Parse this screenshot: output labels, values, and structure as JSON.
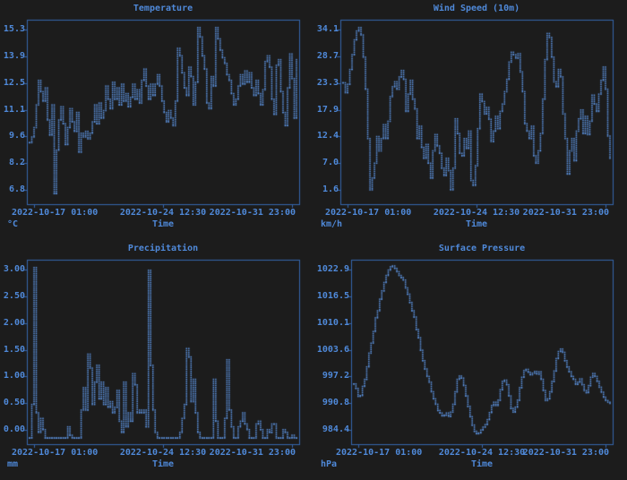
{
  "colors": {
    "background": "#1c1c1c",
    "frame": "#3566ad",
    "text": "#4f89d9",
    "dots": "#5f97e6"
  },
  "chart_data": [
    {
      "type": "line",
      "title": "Temperature",
      "xlabel": "Time",
      "ylabel": "°C",
      "xticks": [
        "2022-10-17 01:00",
        "2022-10-24 12:30",
        "2022-10-31 23:00"
      ],
      "yticks": [
        "15.3",
        "13.9",
        "12.5",
        "11.1",
        "9.6",
        "8.2",
        "6.8"
      ],
      "ylim": [
        6.04,
        15.82
      ],
      "grid": false,
      "legend": "none",
      "values": [
        9.3,
        9.6,
        10.1,
        11.3,
        12.6,
        12.0,
        11.5,
        12.2,
        10.5,
        9.7,
        11.3,
        6.6,
        8.9,
        10.5,
        11.2,
        10.3,
        9.2,
        10.1,
        11.1,
        10.4,
        9.9,
        10.9,
        8.8,
        9.8,
        9.6,
        9.9,
        9.5,
        9.8,
        10.4,
        11.3,
        10.3,
        11.4,
        10.6,
        11.0,
        12.3,
        11.6,
        11.1,
        12.5,
        11.6,
        12.2,
        11.3,
        12.4,
        11.5,
        11.9,
        11.2,
        11.7,
        12.4,
        11.6,
        12.1,
        11.4,
        12.6,
        13.2,
        12.3,
        11.6,
        12.4,
        11.8,
        12.4,
        12.9,
        12.3,
        11.5,
        10.9,
        10.4,
        11.0,
        10.6,
        10.2,
        11.5,
        14.3,
        13.9,
        13.0,
        12.2,
        11.8,
        13.3,
        12.8,
        11.3,
        12.5,
        15.4,
        14.9,
        13.9,
        13.2,
        11.4,
        11.1,
        12.8,
        12.3,
        15.4,
        14.8,
        14.2,
        13.8,
        13.5,
        12.9,
        12.6,
        11.9,
        11.3,
        11.6,
        12.3,
        12.9,
        12.4,
        13.1,
        12.5,
        13.0,
        12.2,
        11.8,
        12.6,
        11.9,
        11.3,
        12.1,
        13.6,
        13.9,
        13.3,
        11.6,
        10.8,
        13.4,
        13.7,
        12.0,
        10.9,
        10.2,
        12.2,
        14.0,
        12.7,
        10.6,
        13.7
      ]
    },
    {
      "type": "line",
      "title": "Wind Speed (10m)",
      "xlabel": "Time",
      "ylabel": "km/h",
      "xticks": [
        "2022-10-17 01:00",
        "2022-10-24 12:30",
        "2022-10-31 23:00"
      ],
      "yticks": [
        "34.1",
        "28.7",
        "23.3",
        "17.9",
        "12.4",
        "7.0",
        "1.6"
      ],
      "ylim": [
        -1.3,
        36.1
      ],
      "grid": false,
      "legend": "none",
      "values": [
        23.3,
        21.3,
        23.0,
        26.0,
        29.0,
        32.0,
        33.8,
        34.5,
        33.0,
        28.5,
        22.0,
        12.0,
        1.6,
        4.0,
        7.0,
        12.4,
        9.5,
        12.0,
        14.8,
        12.0,
        15.5,
        20.5,
        22.5,
        23.5,
        22.0,
        24.5,
        25.8,
        24.0,
        17.5,
        21.0,
        23.8,
        20.0,
        18.0,
        12.0,
        14.5,
        10.2,
        8.0,
        10.8,
        7.0,
        4.0,
        9.5,
        12.8,
        10.5,
        9.0,
        6.0,
        4.5,
        8.0,
        5.5,
        1.6,
        6.0,
        16.0,
        13.0,
        9.0,
        8.5,
        12.0,
        10.0,
        13.5,
        3.5,
        2.5,
        6.5,
        14.0,
        21.0,
        19.5,
        17.0,
        18.3,
        15.9,
        11.4,
        13.5,
        16.5,
        14.0,
        17.5,
        19.0,
        21.5,
        24.0,
        27.5,
        29.5,
        29.0,
        28.3,
        29.2,
        25.5,
        21.5,
        15.0,
        13.5,
        12.0,
        14.5,
        8.5,
        7.0,
        9.5,
        13.0,
        20.0,
        28.0,
        33.3,
        32.5,
        28.5,
        23.5,
        22.5,
        26.0,
        24.5,
        17.0,
        12.0,
        4.8,
        9.5,
        12.0,
        7.5,
        13.5,
        16.0,
        17.8,
        13.0,
        16.5,
        12.8,
        15.5,
        20.8,
        19.0,
        17.5,
        21.0,
        23.8,
        26.5,
        22.0,
        12.5,
        8.0
      ]
    },
    {
      "type": "line",
      "title": "Precipitation",
      "xlabel": "Time",
      "ylabel": "mm",
      "xticks": [
        "2022-10-17 01:00",
        "2022-10-24 12:30",
        "2022-10-31 23:00"
      ],
      "yticks": [
        "3.00",
        "2.50",
        "2.00",
        "1.50",
        "1.00",
        "0.50",
        "0.00"
      ],
      "ylim": [
        -0.11,
        3.19
      ],
      "grid": false,
      "legend": "none",
      "values": [
        0,
        0.6,
        3.05,
        0.45,
        0.1,
        0.35,
        0.15,
        0,
        0,
        0,
        0,
        0,
        0,
        0,
        0,
        0,
        0,
        0.2,
        0.05,
        0,
        0,
        0,
        0,
        0.5,
        0.9,
        0.5,
        1.5,
        1.25,
        0.6,
        1.0,
        1.3,
        0.7,
        1.0,
        0.6,
        0.9,
        0.55,
        0.65,
        0.45,
        0.55,
        0.85,
        0.3,
        0.1,
        1.0,
        0.2,
        0.45,
        0.3,
        1.15,
        0.95,
        0.45,
        0.5,
        0.45,
        0.5,
        0.2,
        3.0,
        1.3,
        0.5,
        0.1,
        0,
        0,
        0,
        0,
        0,
        0,
        0,
        0,
        0,
        0,
        0.1,
        0.35,
        0.6,
        1.6,
        1.45,
        0.65,
        1.05,
        0.45,
        0.1,
        0,
        0,
        0,
        0,
        0,
        0,
        1.05,
        0.3,
        0,
        0,
        0,
        0.35,
        1.4,
        0.5,
        0.2,
        0,
        0,
        0.2,
        0.3,
        0.45,
        0.25,
        0.15,
        0,
        0,
        0,
        0.25,
        0.3,
        0.15,
        0,
        0,
        0.15,
        0.1,
        0.25,
        0.25,
        0,
        0,
        0,
        0.15,
        0.1,
        0,
        0,
        0.05,
        0,
        0
      ]
    },
    {
      "type": "line",
      "title": "Surface Pressure",
      "xlabel": "Time",
      "ylabel": "hPa",
      "xticks": [
        "2022-10-17 01:00",
        "2022-10-24 12:30",
        "2022-10-31 23:00"
      ],
      "yticks": [
        "1022.9",
        "1016.5",
        "1010.1",
        "1003.6",
        "997.2",
        "990.8",
        "984.4"
      ],
      "ylim": [
        980.9,
        1025.3
      ],
      "grid": false,
      "legend": "none",
      "values": [
        995.4,
        994.3,
        992.4,
        992.6,
        994.8,
        996.5,
        999.5,
        1002.8,
        1005.2,
        1008.0,
        1011.3,
        1013.0,
        1015.8,
        1017.8,
        1019.8,
        1021.5,
        1022.8,
        1023.6,
        1023.8,
        1023.2,
        1022.4,
        1021.5,
        1021.0,
        1020.4,
        1018.5,
        1017.0,
        1015.0,
        1013.0,
        1011.5,
        1008.5,
        1006.5,
        1003.5,
        1001.0,
        999.0,
        997.2,
        995.8,
        993.5,
        991.8,
        990.5,
        989.0,
        988.4,
        987.7,
        987.9,
        988.4,
        987.6,
        988.6,
        990.5,
        993.5,
        996.5,
        997.3,
        996.8,
        995.0,
        992.5,
        990.0,
        987.5,
        985.5,
        984.0,
        983.4,
        983.6,
        984.3,
        985.0,
        985.6,
        986.8,
        988.5,
        990.2,
        991.0,
        990.2,
        991.5,
        994.0,
        996.0,
        996.3,
        995.2,
        992.5,
        989.5,
        988.6,
        989.8,
        991.5,
        994.5,
        997.0,
        998.6,
        998.9,
        998.2,
        997.6,
        998.0,
        998.4,
        997.8,
        998.3,
        996.5,
        993.8,
        991.4,
        991.8,
        993.5,
        996.0,
        998.5,
        1001.5,
        1003.2,
        1003.8,
        1003.0,
        1001.0,
        999.5,
        998.3,
        997.2,
        996.5,
        995.3,
        995.8,
        996.6,
        995.2,
        993.8,
        993.3,
        995.0,
        997.0,
        997.9,
        997.2,
        996.0,
        994.6,
        993.4,
        992.2,
        991.4,
        991.0,
        990.7
      ]
    }
  ]
}
